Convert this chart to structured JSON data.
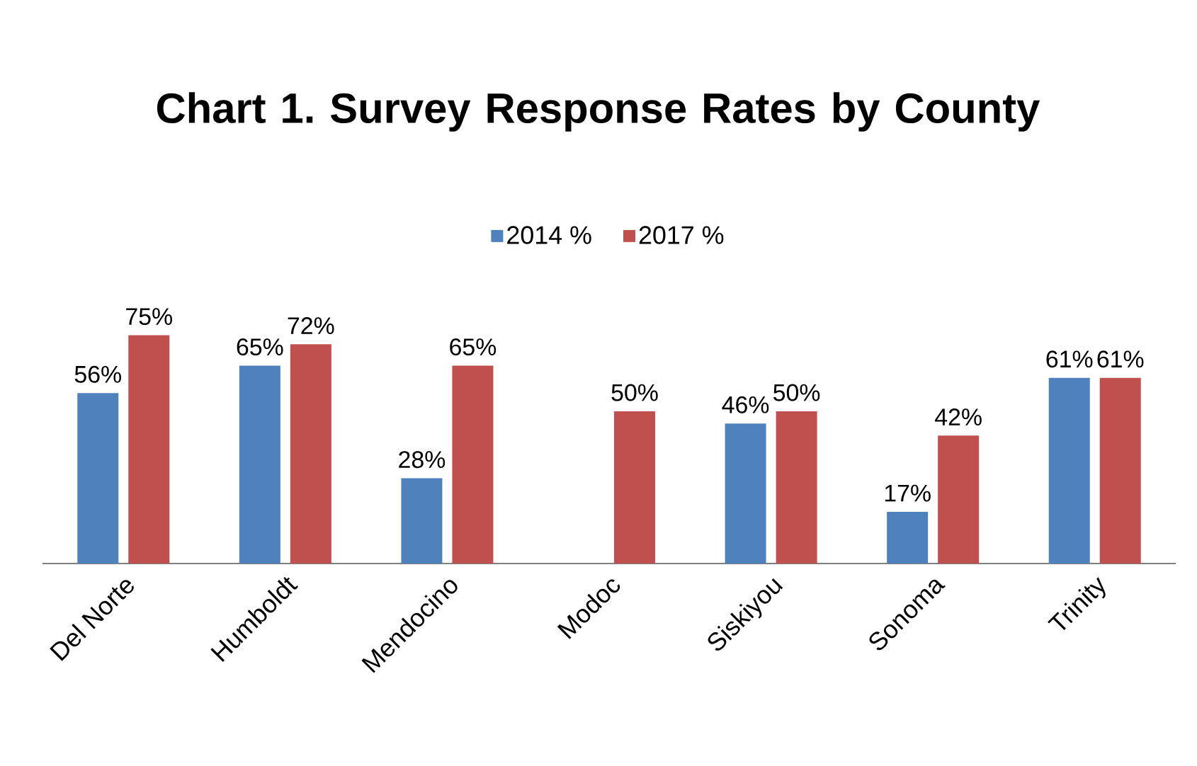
{
  "chart_data": {
    "type": "bar",
    "title": "Chart 1. Survey Response Rates by County",
    "categories": [
      "Del Norte",
      "Humboldt",
      "Mendocino",
      "Modoc",
      "Siskiyou",
      "Sonoma",
      "Trinity"
    ],
    "series": [
      {
        "name": "2014 %",
        "color": "#4f81bd",
        "values": [
          56,
          65,
          28,
          null,
          46,
          17,
          61
        ],
        "value_labels": [
          "56%",
          "65%",
          "28%",
          null,
          "46%",
          "17%",
          "61%"
        ]
      },
      {
        "name": "2017 %",
        "color": "#c0504d",
        "values": [
          75,
          72,
          65,
          50,
          50,
          42,
          61
        ],
        "value_labels": [
          "75%",
          "72%",
          "65%",
          "50%",
          "50%",
          "42%",
          "61%"
        ]
      }
    ],
    "legend": "top"
  }
}
